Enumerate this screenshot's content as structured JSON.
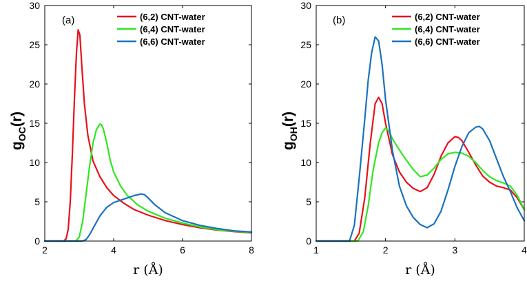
{
  "chart_data": [
    {
      "type": "line",
      "panel_label": "(a)",
      "xlabel": "r (Å)",
      "ylabel_main": "g",
      "ylabel_sub": "OC",
      "ylabel_tail": "(r)",
      "xlim": [
        2,
        8
      ],
      "ylim": [
        0,
        30
      ],
      "xticks": [
        2,
        4,
        6,
        8
      ],
      "yticks": [
        0,
        5,
        10,
        15,
        20,
        25,
        30
      ],
      "legend_position": "top-right",
      "series": [
        {
          "name": "(6,2) CNT-water",
          "color": "#e8111b",
          "x": [
            2.0,
            2.55,
            2.62,
            2.68,
            2.74,
            2.8,
            2.86,
            2.92,
            2.97,
            3.02,
            3.08,
            3.15,
            3.25,
            3.4,
            3.6,
            3.8,
            4.0,
            4.3,
            4.6,
            5.0,
            5.5,
            6.0,
            6.5,
            7.0,
            7.5,
            8.0
          ],
          "y": [
            0,
            0,
            0.3,
            1.5,
            5,
            11,
            18,
            24,
            26.9,
            26.2,
            22,
            17.5,
            13.5,
            10.2,
            8.2,
            6.8,
            5.8,
            4.8,
            4.0,
            3.3,
            2.6,
            2.1,
            1.7,
            1.4,
            1.2,
            1.05
          ]
        },
        {
          "name": "(6,4) CNT-water",
          "color": "#2ee81f",
          "x": [
            2.0,
            2.9,
            3.0,
            3.1,
            3.2,
            3.3,
            3.4,
            3.5,
            3.6,
            3.65,
            3.7,
            3.8,
            3.9,
            4.0,
            4.2,
            4.4,
            4.7,
            5.0,
            5.5,
            6.0,
            6.5,
            7.0,
            7.5,
            8.0
          ],
          "y": [
            0,
            0,
            0.5,
            2.5,
            6,
            9.5,
            12.5,
            14.2,
            14.9,
            14.8,
            14.3,
            12.5,
            10.3,
            8.8,
            7.0,
            5.8,
            4.6,
            3.8,
            2.9,
            2.3,
            1.8,
            1.45,
            1.25,
            1.1
          ]
        },
        {
          "name": "(6,6) CNT-water",
          "color": "#1a72bd",
          "x": [
            2.0,
            3.1,
            3.2,
            3.3,
            3.45,
            3.6,
            3.8,
            4.0,
            4.2,
            4.4,
            4.6,
            4.8,
            4.9,
            5.0,
            5.2,
            5.5,
            6.0,
            6.5,
            7.0,
            7.5,
            8.0
          ],
          "y": [
            0,
            0,
            0.2,
            0.8,
            2.0,
            3.2,
            4.3,
            4.9,
            5.2,
            5.5,
            5.8,
            6.0,
            5.9,
            5.5,
            4.6,
            3.6,
            2.6,
            2.0,
            1.6,
            1.3,
            1.15
          ]
        }
      ]
    },
    {
      "type": "line",
      "panel_label": "(b)",
      "xlabel": "r (Å)",
      "ylabel_main": "g",
      "ylabel_sub": "OH",
      "ylabel_tail": "(r)",
      "xlim": [
        1,
        4
      ],
      "ylim": [
        0,
        30
      ],
      "xticks": [
        1,
        2,
        3,
        4
      ],
      "yticks": [
        0,
        5,
        10,
        15,
        20,
        25,
        30
      ],
      "legend_position": "top-right",
      "series": [
        {
          "name": "(6,2) CNT-water",
          "color": "#e8111b",
          "x": [
            1.0,
            1.55,
            1.62,
            1.7,
            1.78,
            1.85,
            1.9,
            1.95,
            2.0,
            2.1,
            2.2,
            2.3,
            2.4,
            2.5,
            2.6,
            2.7,
            2.8,
            2.9,
            3.0,
            3.05,
            3.1,
            3.2,
            3.3,
            3.4,
            3.5,
            3.6,
            3.7,
            3.8,
            3.9,
            4.0
          ],
          "y": [
            0,
            0,
            1.0,
            5.5,
            12.5,
            17.5,
            18.3,
            17.5,
            15.0,
            11.0,
            8.8,
            7.5,
            6.7,
            6.3,
            6.8,
            8.5,
            10.8,
            12.5,
            13.3,
            13.2,
            12.8,
            11.3,
            9.7,
            8.3,
            7.5,
            7.0,
            6.8,
            6.5,
            5.5,
            4.0
          ]
        },
        {
          "name": "(6,4) CNT-water",
          "color": "#2ee81f",
          "x": [
            1.0,
            1.6,
            1.68,
            1.75,
            1.82,
            1.9,
            1.95,
            2.0,
            2.05,
            2.1,
            2.2,
            2.3,
            2.4,
            2.5,
            2.6,
            2.7,
            2.8,
            2.9,
            3.0,
            3.1,
            3.2,
            3.3,
            3.4,
            3.5,
            3.6,
            3.7,
            3.8,
            3.9,
            4.0
          ],
          "y": [
            0,
            0,
            1.2,
            4.5,
            9.0,
            12.5,
            13.8,
            14.4,
            14.0,
            13.0,
            11.6,
            10.3,
            9.1,
            8.2,
            8.4,
            9.3,
            10.4,
            11.1,
            11.3,
            11.2,
            10.8,
            10.0,
            9.0,
            8.2,
            7.7,
            7.4,
            7.0,
            5.8,
            4.0
          ]
        },
        {
          "name": "(6,6) CNT-water",
          "color": "#1a72bd",
          "x": [
            1.0,
            1.48,
            1.55,
            1.62,
            1.7,
            1.75,
            1.8,
            1.85,
            1.9,
            1.95,
            2.0,
            2.1,
            2.2,
            2.3,
            2.4,
            2.5,
            2.6,
            2.7,
            2.8,
            2.9,
            3.0,
            3.1,
            3.2,
            3.3,
            3.35,
            3.4,
            3.5,
            3.6,
            3.7,
            3.8,
            3.9,
            4.0
          ],
          "y": [
            0,
            0,
            2.0,
            8.0,
            15.5,
            20.5,
            24.0,
            26.0,
            25.5,
            22.5,
            18.0,
            11.5,
            7.0,
            4.5,
            3.0,
            2.1,
            1.7,
            2.2,
            3.8,
            6.5,
            9.5,
            12.0,
            13.8,
            14.5,
            14.6,
            14.3,
            12.8,
            10.5,
            8.2,
            6.3,
            4.2,
            2.6
          ]
        }
      ]
    }
  ]
}
